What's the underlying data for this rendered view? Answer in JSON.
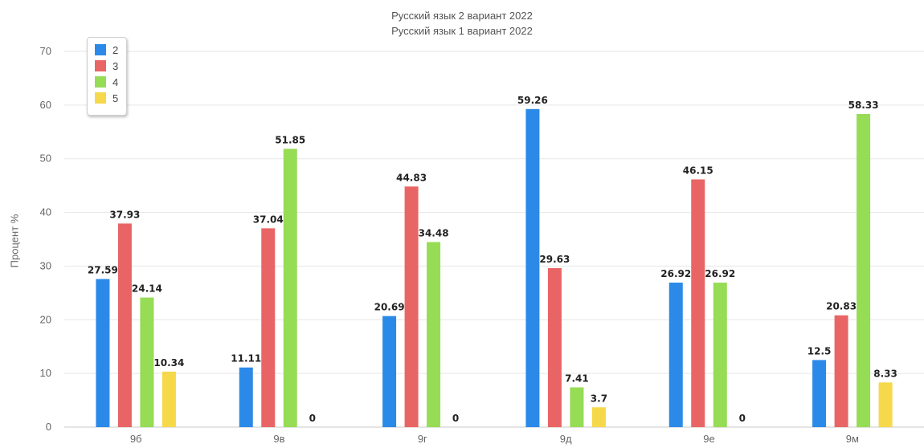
{
  "titles": [
    "Русский язык 2 вариант 2022",
    "Русский язык 1 вариант 2022"
  ],
  "chart_data": {
    "type": "bar",
    "title": "",
    "xlabel": "",
    "ylabel": "Процент %",
    "ylim": [
      0,
      70
    ],
    "yticks": [
      0,
      10,
      20,
      30,
      40,
      50,
      60,
      70
    ],
    "grid": true,
    "legend_position": "top-left",
    "categories": [
      "9б",
      "9в",
      "9г",
      "9д",
      "9е",
      "9м"
    ],
    "series": [
      {
        "name": "2",
        "color": "#2b8ae8",
        "values": [
          27.59,
          11.11,
          20.69,
          59.26,
          26.92,
          12.5
        ]
      },
      {
        "name": "3",
        "color": "#e96565",
        "values": [
          37.93,
          37.04,
          44.83,
          29.63,
          46.15,
          20.83
        ]
      },
      {
        "name": "4",
        "color": "#96dc55",
        "values": [
          24.14,
          51.85,
          34.48,
          7.41,
          26.92,
          58.33
        ]
      },
      {
        "name": "5",
        "color": "#f5d94a",
        "values": [
          10.34,
          0,
          0,
          3.7,
          0,
          8.33
        ]
      }
    ]
  }
}
